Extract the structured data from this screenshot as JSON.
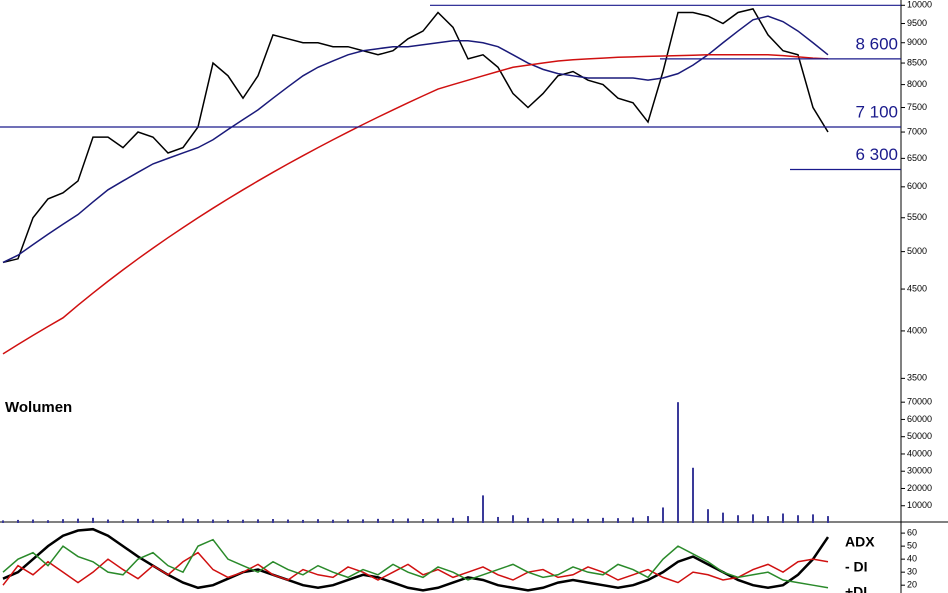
{
  "chart_data": [
    {
      "type": "line",
      "log_scale": true,
      "ylim": [
        3340,
        10150
      ],
      "yticks": [
        3500,
        4000,
        4500,
        5000,
        5500,
        6000,
        6500,
        7000,
        7500,
        8000,
        8500,
        9000,
        9500,
        10000
      ],
      "series": [
        {
          "color": "#000000",
          "values": [
            4850,
            4900,
            5500,
            5800,
            5900,
            6100,
            6900,
            6900,
            6700,
            7000,
            6900,
            6600,
            6700,
            7100,
            8500,
            8200,
            7700,
            8200,
            9200,
            9100,
            9000,
            9000,
            8900,
            8900,
            8800,
            8700,
            8800,
            9100,
            9300,
            9800,
            9400,
            8600,
            8700,
            8400,
            7800,
            7500,
            7800,
            8200,
            8300,
            8100,
            8000,
            7700,
            7600,
            7200,
            8300,
            9800,
            9800,
            9700,
            9500,
            9800,
            9900,
            9200,
            8800,
            8700,
            7500,
            7000
          ]
        },
        {
          "color": "#1a1a7a",
          "values": [
            4850,
            4950,
            5100,
            5250,
            5400,
            5550,
            5750,
            5950,
            6100,
            6250,
            6400,
            6500,
            6600,
            6700,
            6850,
            7050,
            7250,
            7450,
            7700,
            7950,
            8200,
            8400,
            8550,
            8700,
            8800,
            8850,
            8900,
            8900,
            8950,
            9000,
            9050,
            9050,
            9000,
            8900,
            8700,
            8500,
            8350,
            8250,
            8200,
            8150,
            8150,
            8150,
            8150,
            8100,
            8150,
            8250,
            8450,
            8700,
            9000,
            9300,
            9600,
            9700,
            9550,
            9300,
            9000,
            8700
          ]
        },
        {
          "color": "#d01010",
          "values": [
            3750,
            3850,
            3950,
            4050,
            4150,
            4300,
            4450,
            4600,
            4750,
            4900,
            5050,
            5200,
            5350,
            5500,
            5650,
            5800,
            5950,
            6100,
            6250,
            6400,
            6550,
            6700,
            6850,
            7000,
            7150,
            7300,
            7450,
            7600,
            7750,
            7900,
            8000,
            8100,
            8200,
            8300,
            8400,
            8450,
            8500,
            8550,
            8580,
            8600,
            8620,
            8640,
            8650,
            8660,
            8670,
            8680,
            8690,
            8700,
            8700,
            8700,
            8700,
            8700,
            8680,
            8650,
            8620,
            8600
          ]
        }
      ],
      "levels": [
        {
          "value": 10000,
          "label": "10 000"
        },
        {
          "value": 8600,
          "label": "8 600"
        },
        {
          "value": 7100,
          "label": "7 100"
        },
        {
          "value": 6300,
          "label": "6 300"
        }
      ],
      "level_color": "#1a1a8c"
    },
    {
      "type": "bar",
      "title": "Wolumen",
      "ylim": [
        0,
        73000
      ],
      "yticks": [
        10000,
        20000,
        30000,
        40000,
        50000,
        60000,
        70000
      ],
      "color": "#3a3a9a",
      "values": [
        1500,
        1800,
        2000,
        1600,
        2200,
        2500,
        3000,
        2000,
        1800,
        2400,
        2000,
        1700,
        2600,
        2200,
        2000,
        1800,
        1900,
        2100,
        2300,
        2000,
        1800,
        2200,
        1900,
        2000,
        2100,
        2400,
        2200,
        2600,
        2300,
        2500,
        3000,
        4000,
        16000,
        3500,
        4500,
        3000,
        2500,
        2800,
        2600,
        2400,
        3000,
        2800,
        3200,
        4000,
        9000,
        70000,
        32000,
        8000,
        6000,
        4500,
        5000,
        4000,
        5500,
        4500,
        5000,
        4000
      ]
    },
    {
      "type": "line",
      "ylim": [
        14,
        67
      ],
      "yticks": [
        20,
        30,
        40,
        50,
        60
      ],
      "series": [
        {
          "name": "ADX",
          "color": "#000000",
          "values": [
            25,
            30,
            40,
            50,
            58,
            62,
            63,
            58,
            50,
            42,
            35,
            28,
            22,
            18,
            20,
            25,
            30,
            32,
            28,
            24,
            20,
            18,
            20,
            24,
            28,
            26,
            22,
            18,
            16,
            18,
            22,
            26,
            24,
            20,
            18,
            16,
            18,
            22,
            24,
            22,
            20,
            18,
            20,
            24,
            30,
            38,
            42,
            36,
            30,
            24,
            20,
            18,
            20,
            28,
            40,
            57
          ]
        },
        {
          "name": "- DI",
          "color": "#d01010",
          "values": [
            20,
            35,
            28,
            38,
            30,
            22,
            30,
            40,
            32,
            25,
            35,
            28,
            38,
            45,
            32,
            26,
            30,
            36,
            28,
            24,
            32,
            28,
            26,
            34,
            30,
            24,
            30,
            36,
            28,
            32,
            26,
            30,
            34,
            28,
            24,
            30,
            32,
            26,
            28,
            34,
            30,
            24,
            28,
            32,
            26,
            22,
            30,
            28,
            24,
            26,
            32,
            36,
            30,
            38,
            40,
            38
          ]
        },
        {
          "name": "+DI",
          "color": "#2a8a2a",
          "values": [
            30,
            40,
            45,
            35,
            50,
            42,
            38,
            30,
            28,
            40,
            45,
            35,
            30,
            50,
            55,
            40,
            35,
            30,
            38,
            32,
            28,
            35,
            30,
            26,
            32,
            28,
            36,
            30,
            26,
            34,
            30,
            24,
            28,
            32,
            36,
            30,
            26,
            28,
            34,
            30,
            28,
            36,
            32,
            26,
            40,
            50,
            44,
            38,
            30,
            26,
            28,
            30,
            24,
            22,
            20,
            18
          ]
        }
      ]
    }
  ]
}
